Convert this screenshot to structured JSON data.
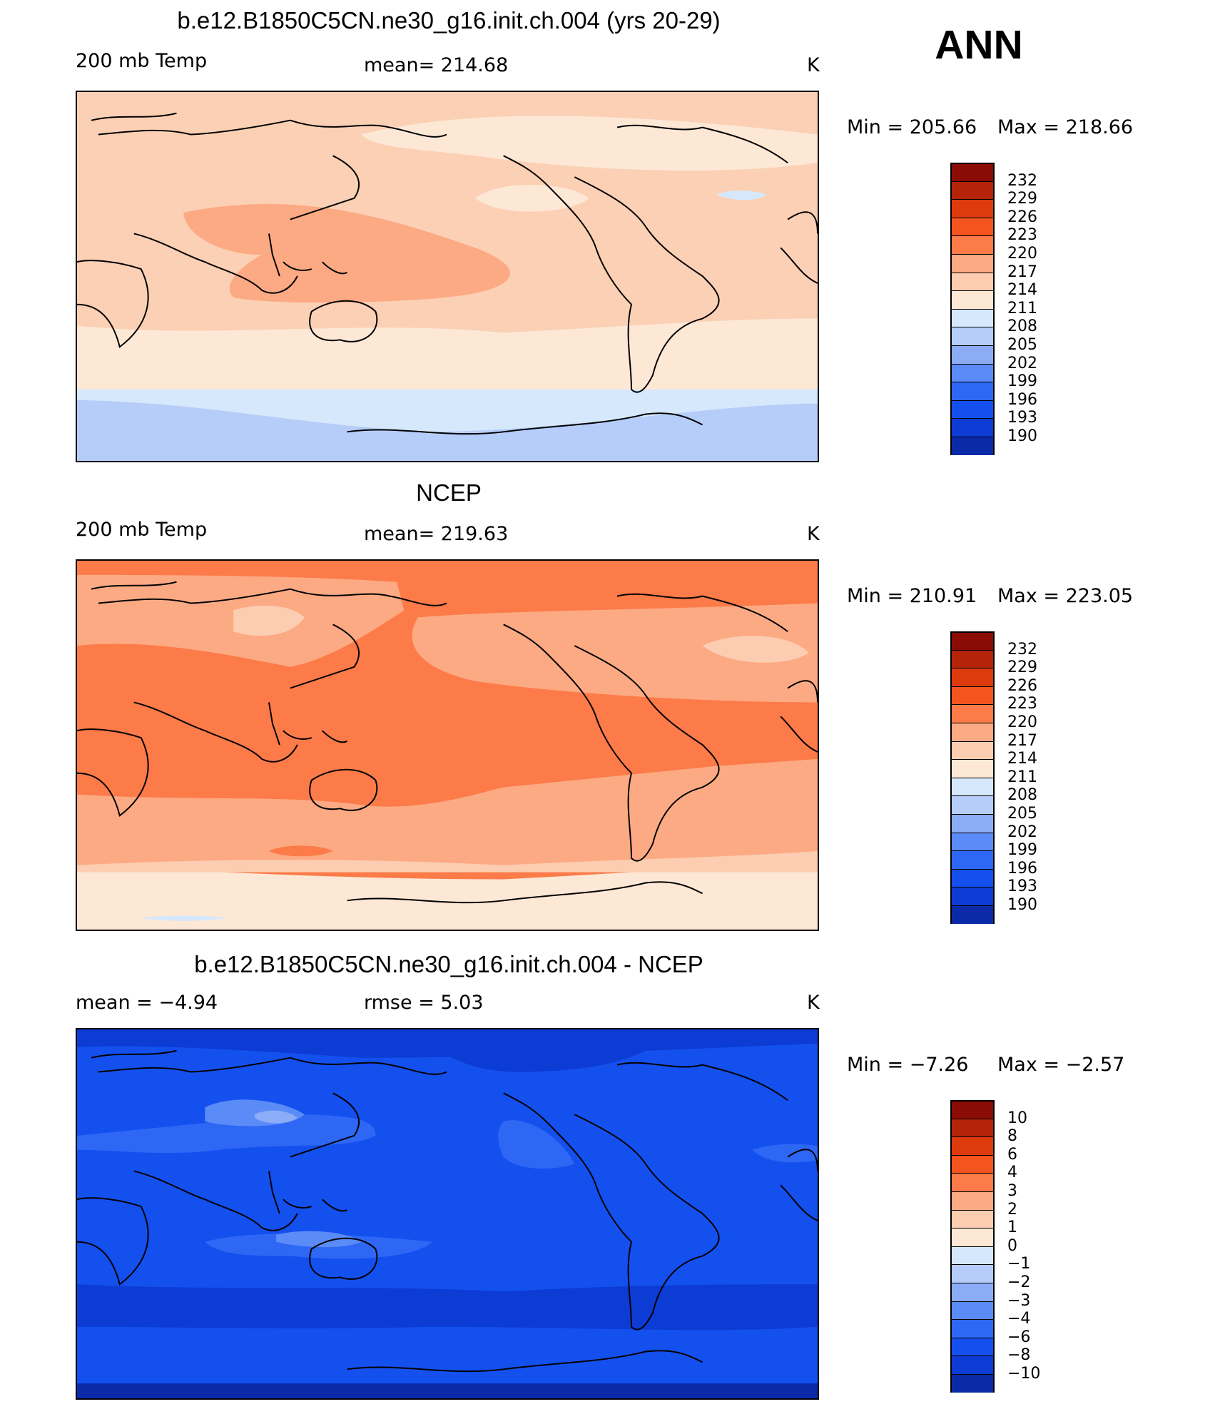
{
  "season": "ANN",
  "colors": {
    "scale": [
      "#08088f",
      "#0b2aa8",
      "#0c3cd4",
      "#1450ee",
      "#2d67f4",
      "#5a8bf7",
      "#8cacf8",
      "#b6cdfa",
      "#d6e8fb",
      "#fde8d6",
      "#fccdb1",
      "#fcaa84",
      "#fc7b49",
      "#f4541f",
      "#dd3a0e",
      "#b32409",
      "#8a0c05"
    ],
    "coast": "#000000"
  },
  "panels": [
    {
      "title": "b.e12.B1850C5CN.ne30_g16.init.ch.004 (yrs 20-29)",
      "left_label": "200 mb Temp",
      "center_label": "mean=  214.68",
      "right_label": "K",
      "min_label": "Min  =  205.66",
      "max_label": "Max  =  218.66",
      "colorbar_labels": [
        "232",
        "229",
        "226",
        "223",
        "220",
        "217",
        "214",
        "211",
        "208",
        "205",
        "202",
        "199",
        "196",
        "193",
        "190"
      ]
    },
    {
      "title": "NCEP",
      "left_label": "200 mb Temp",
      "center_label": "mean=  219.63",
      "right_label": "K",
      "min_label": "Min  =  210.91",
      "max_label": "Max  =  223.05",
      "colorbar_labels": [
        "232",
        "229",
        "226",
        "223",
        "220",
        "217",
        "214",
        "211",
        "208",
        "205",
        "202",
        "199",
        "196",
        "193",
        "190"
      ]
    },
    {
      "title": "b.e12.B1850C5CN.ne30_g16.init.ch.004 - NCEP",
      "left_label": "mean  =    −4.94",
      "center_label": "rmse  =     5.03",
      "right_label": "K",
      "min_label": "Min  =    −7.26",
      "max_label": "Max  =    −2.57",
      "colorbar_labels": [
        "10",
        "8",
        "6",
        "4",
        "3",
        "2",
        "1",
        "0",
        "−1",
        "−2",
        "−3",
        "−4",
        "−6",
        "−8",
        "−10"
      ]
    }
  ]
}
